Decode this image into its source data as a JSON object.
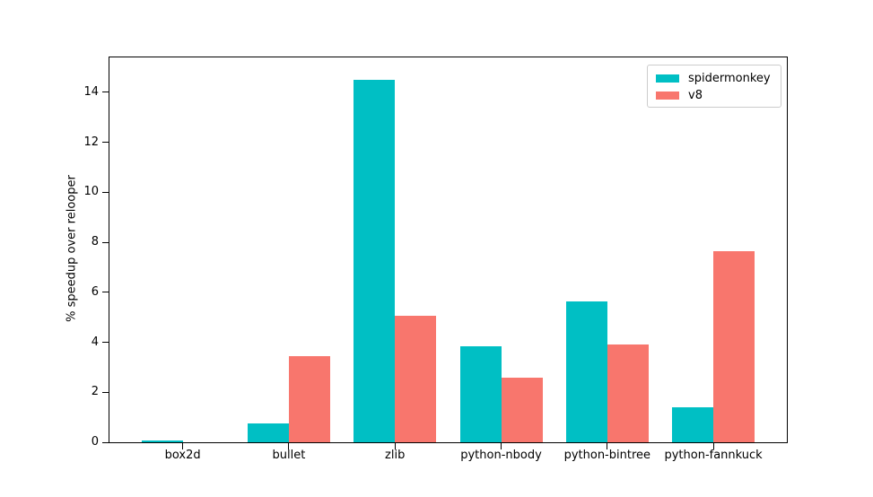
{
  "chart_data": {
    "type": "bar",
    "title": "",
    "xlabel": "",
    "ylabel": "% speedup over relooper",
    "categories": [
      "box2d",
      "bullet",
      "zlib",
      "python-nbody",
      "python-bintree",
      "python-fannkuck"
    ],
    "series": [
      {
        "name": "spidermonkey",
        "color": "#00bfc4",
        "values": [
          0.08,
          0.75,
          14.5,
          3.85,
          5.65,
          1.4
        ]
      },
      {
        "name": "v8",
        "color": "#f8766d",
        "values": [
          0,
          3.45,
          5.05,
          2.6,
          3.9,
          7.65
        ]
      }
    ],
    "yticks": [
      0,
      2,
      4,
      6,
      8,
      10,
      12,
      14
    ],
    "ylim": [
      0,
      15.4
    ],
    "grid": false,
    "legend_position": "upper right",
    "colors": {
      "spine": "#000000",
      "legend_border": "#cccccc",
      "background": "#ffffff"
    }
  }
}
